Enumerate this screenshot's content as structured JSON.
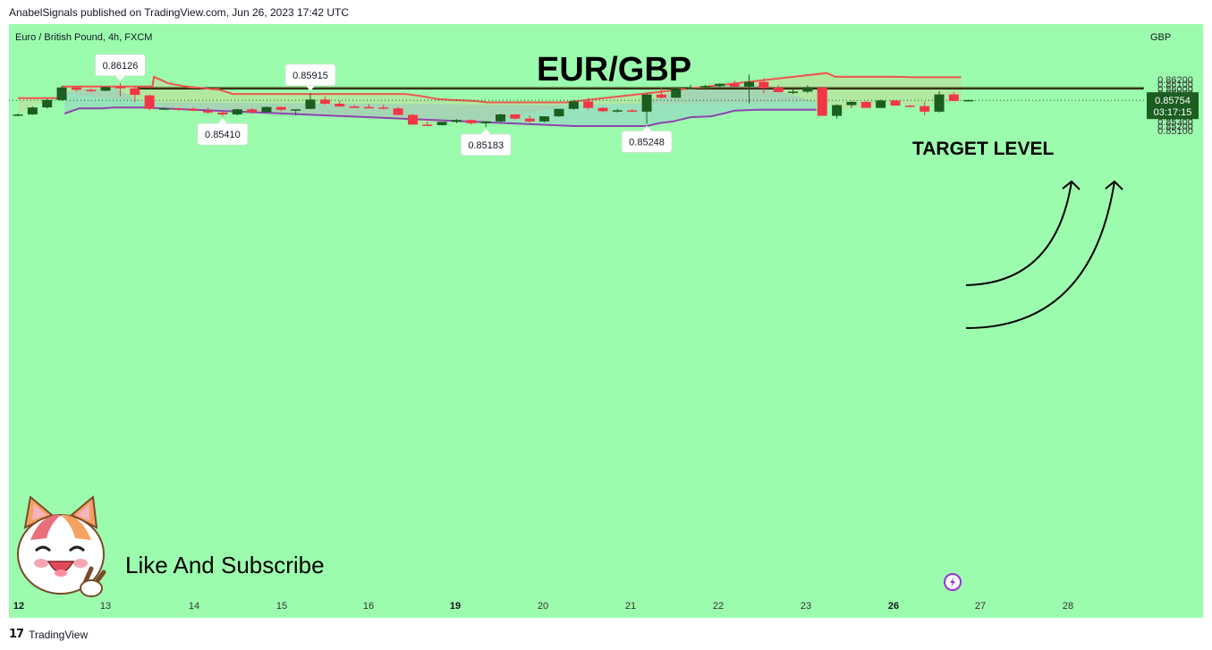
{
  "header": {
    "caption": "AnabelSignals published on TradingView.com, Jun 26, 2023 17:42 UTC"
  },
  "footer": {
    "brand_logo": "17",
    "brand_name": "TradingView"
  },
  "colors": {
    "background": "#9cfcae",
    "bull_candle": "#1b5e20",
    "bear_candle": "#f23645",
    "upper_band": "#ef5350",
    "lower_band": "#8e44ad",
    "target_zone": "#ffe033",
    "last_price_bg": "#1b5e20"
  },
  "labels": {
    "symbol": "Euro / British Pound, 4h, FXCM",
    "currency": "GBP",
    "title": "EUR/GBP",
    "target": "TARGET LEVEL",
    "like": "Like And Subscribe",
    "last_price": "0.85754",
    "countdown": "03:17:15"
  },
  "chart_data": {
    "type": "candlestick",
    "symbol": "Euro / British Pound, 4h, FXCM",
    "currency": "GBP",
    "x_ticks": [
      {
        "label": "12",
        "bold": true
      },
      {
        "label": "13",
        "bold": false
      },
      {
        "label": "14",
        "bold": false
      },
      {
        "label": "15",
        "bold": false
      },
      {
        "label": "16",
        "bold": false
      },
      {
        "label": "19",
        "bold": true
      },
      {
        "label": "20",
        "bold": false
      },
      {
        "label": "21",
        "bold": false
      },
      {
        "label": "22",
        "bold": false
      },
      {
        "label": "23",
        "bold": false
      },
      {
        "label": "26",
        "bold": true
      },
      {
        "label": "27",
        "bold": false
      },
      {
        "label": "28",
        "bold": false
      }
    ],
    "y_ticks": [
      "0.86200",
      "0.86100",
      "0.86000",
      "0.85900",
      "0.85800",
      "0.85700",
      "0.85600",
      "0.85500",
      "0.85400",
      "0.85300",
      "0.85200",
      "0.85100"
    ],
    "ylim": [
      0.8508,
      0.8633
    ],
    "candles": [
      {
        "o": 0.8545,
        "h": 0.8547,
        "l": 0.8541,
        "c": 0.8545
      },
      {
        "o": 0.8545,
        "h": 0.8562,
        "l": 0.8544,
        "c": 0.856
      },
      {
        "o": 0.856,
        "h": 0.8579,
        "l": 0.8558,
        "c": 0.8576
      },
      {
        "o": 0.8576,
        "h": 0.8607,
        "l": 0.8574,
        "c": 0.8603
      },
      {
        "o": 0.8603,
        "h": 0.8605,
        "l": 0.8595,
        "c": 0.8598
      },
      {
        "o": 0.8598,
        "h": 0.86,
        "l": 0.8593,
        "c": 0.8596
      },
      {
        "o": 0.8596,
        "h": 0.8605,
        "l": 0.8595,
        "c": 0.8604
      },
      {
        "o": 0.8604,
        "h": 0.8613,
        "l": 0.8584,
        "c": 0.8601
      },
      {
        "o": 0.8601,
        "h": 0.8605,
        "l": 0.8571,
        "c": 0.8587
      },
      {
        "o": 0.8586,
        "h": 0.8588,
        "l": 0.8554,
        "c": 0.8557
      },
      {
        "o": 0.8557,
        "h": 0.856,
        "l": 0.8555,
        "c": 0.8558
      },
      {
        "o": 0.8558,
        "h": 0.8559,
        "l": 0.8553,
        "c": 0.8557
      },
      {
        "o": 0.8557,
        "h": 0.856,
        "l": 0.8552,
        "c": 0.8553
      },
      {
        "o": 0.8553,
        "h": 0.856,
        "l": 0.8546,
        "c": 0.8549
      },
      {
        "o": 0.8549,
        "h": 0.8551,
        "l": 0.8541,
        "c": 0.8545
      },
      {
        "o": 0.8545,
        "h": 0.8557,
        "l": 0.8543,
        "c": 0.8556
      },
      {
        "o": 0.8556,
        "h": 0.8559,
        "l": 0.8547,
        "c": 0.855
      },
      {
        "o": 0.855,
        "h": 0.8562,
        "l": 0.8549,
        "c": 0.8561
      },
      {
        "o": 0.8561,
        "h": 0.8562,
        "l": 0.8552,
        "c": 0.8555
      },
      {
        "o": 0.8555,
        "h": 0.8556,
        "l": 0.8543,
        "c": 0.8556
      },
      {
        "o": 0.8557,
        "h": 0.8591,
        "l": 0.8556,
        "c": 0.8577
      },
      {
        "o": 0.8577,
        "h": 0.8584,
        "l": 0.8566,
        "c": 0.8568
      },
      {
        "o": 0.8568,
        "h": 0.8574,
        "l": 0.8562,
        "c": 0.8562
      },
      {
        "o": 0.8562,
        "h": 0.8565,
        "l": 0.8559,
        "c": 0.8561
      },
      {
        "o": 0.8561,
        "h": 0.8567,
        "l": 0.8559,
        "c": 0.856
      },
      {
        "o": 0.856,
        "h": 0.8566,
        "l": 0.8556,
        "c": 0.8558
      },
      {
        "o": 0.8558,
        "h": 0.8561,
        "l": 0.8543,
        "c": 0.8544
      },
      {
        "o": 0.8544,
        "h": 0.8546,
        "l": 0.8523,
        "c": 0.8523
      },
      {
        "o": 0.8523,
        "h": 0.853,
        "l": 0.8521,
        "c": 0.8522
      },
      {
        "o": 0.8522,
        "h": 0.8529,
        "l": 0.8521,
        "c": 0.8529
      },
      {
        "o": 0.8529,
        "h": 0.8535,
        "l": 0.8526,
        "c": 0.8533
      },
      {
        "o": 0.8533,
        "h": 0.8534,
        "l": 0.8523,
        "c": 0.8526
      },
      {
        "o": 0.8526,
        "h": 0.8531,
        "l": 0.8518,
        "c": 0.853
      },
      {
        "o": 0.853,
        "h": 0.8547,
        "l": 0.8528,
        "c": 0.8545
      },
      {
        "o": 0.8545,
        "h": 0.8546,
        "l": 0.8534,
        "c": 0.8536
      },
      {
        "o": 0.8536,
        "h": 0.8543,
        "l": 0.8527,
        "c": 0.853
      },
      {
        "o": 0.853,
        "h": 0.8541,
        "l": 0.8528,
        "c": 0.8541
      },
      {
        "o": 0.8541,
        "h": 0.8557,
        "l": 0.854,
        "c": 0.8557
      },
      {
        "o": 0.8557,
        "h": 0.8576,
        "l": 0.8555,
        "c": 0.8573
      },
      {
        "o": 0.8573,
        "h": 0.8581,
        "l": 0.8555,
        "c": 0.8559
      },
      {
        "o": 0.8559,
        "h": 0.8561,
        "l": 0.8549,
        "c": 0.8552
      },
      {
        "o": 0.8552,
        "h": 0.8557,
        "l": 0.8549,
        "c": 0.8554
      },
      {
        "o": 0.8554,
        "h": 0.8557,
        "l": 0.855,
        "c": 0.8551
      },
      {
        "o": 0.8551,
        "h": 0.859,
        "l": 0.8525,
        "c": 0.8588
      },
      {
        "o": 0.8588,
        "h": 0.8603,
        "l": 0.8579,
        "c": 0.8581
      },
      {
        "o": 0.8581,
        "h": 0.8602,
        "l": 0.858,
        "c": 0.86
      },
      {
        "o": 0.86,
        "h": 0.8609,
        "l": 0.8599,
        "c": 0.8602
      },
      {
        "o": 0.8602,
        "h": 0.8609,
        "l": 0.8598,
        "c": 0.8606
      },
      {
        "o": 0.8606,
        "h": 0.8612,
        "l": 0.8604,
        "c": 0.8611
      },
      {
        "o": 0.8611,
        "h": 0.8618,
        "l": 0.8604,
        "c": 0.8605
      },
      {
        "o": 0.8605,
        "h": 0.8631,
        "l": 0.8569,
        "c": 0.8615
      },
      {
        "o": 0.8615,
        "h": 0.8623,
        "l": 0.859,
        "c": 0.8601
      },
      {
        "o": 0.8603,
        "h": 0.8608,
        "l": 0.8593,
        "c": 0.8593
      },
      {
        "o": 0.8593,
        "h": 0.8603,
        "l": 0.8589,
        "c": 0.8594
      },
      {
        "o": 0.8594,
        "h": 0.8608,
        "l": 0.8591,
        "c": 0.8603
      },
      {
        "o": 0.8603,
        "h": 0.8605,
        "l": 0.8542,
        "c": 0.8542
      },
      {
        "o": 0.8542,
        "h": 0.8567,
        "l": 0.8536,
        "c": 0.8565
      },
      {
        "o": 0.8565,
        "h": 0.8574,
        "l": 0.8559,
        "c": 0.8572
      },
      {
        "o": 0.8572,
        "h": 0.8574,
        "l": 0.8559,
        "c": 0.8559
      },
      {
        "o": 0.8559,
        "h": 0.8577,
        "l": 0.8559,
        "c": 0.8575
      },
      {
        "o": 0.8575,
        "h": 0.8576,
        "l": 0.8564,
        "c": 0.8564
      },
      {
        "o": 0.8564,
        "h": 0.8565,
        "l": 0.8561,
        "c": 0.8563
      },
      {
        "o": 0.8563,
        "h": 0.8572,
        "l": 0.8543,
        "c": 0.8551
      },
      {
        "o": 0.8551,
        "h": 0.8595,
        "l": 0.8549,
        "c": 0.8588
      },
      {
        "o": 0.8588,
        "h": 0.8593,
        "l": 0.8573,
        "c": 0.8574
      },
      {
        "o": 0.8575,
        "h": 0.8577,
        "l": 0.8574,
        "c": 0.8576
      }
    ],
    "upper_band": [
      [
        0,
        0.858
      ],
      [
        3,
        0.858
      ],
      [
        3.1,
        0.8605
      ],
      [
        9.2,
        0.8605
      ],
      [
        9.3,
        0.8626
      ],
      [
        10.3,
        0.8612
      ],
      [
        11.5,
        0.8605
      ],
      [
        13.8,
        0.8598
      ],
      [
        14.7,
        0.8589
      ],
      [
        26.5,
        0.8589
      ],
      [
        27.5,
        0.8585
      ],
      [
        28.7,
        0.8578
      ],
      [
        29.8,
        0.8576
      ],
      [
        31.2,
        0.8574
      ],
      [
        32.1,
        0.8571
      ],
      [
        37.5,
        0.8571
      ],
      [
        55.3,
        0.8634
      ],
      [
        55.9,
        0.8626
      ],
      [
        60.2,
        0.8626
      ],
      [
        61.2,
        0.8625
      ],
      [
        64.5,
        0.8625
      ]
    ],
    "lower_band": [
      [
        3.2,
        0.8547
      ],
      [
        4.2,
        0.8558
      ],
      [
        5.7,
        0.8558
      ],
      [
        6.6,
        0.856
      ],
      [
        8.5,
        0.856
      ],
      [
        38.0,
        0.852
      ],
      [
        43.0,
        0.852
      ],
      [
        43.8,
        0.8526
      ],
      [
        44.8,
        0.853
      ],
      [
        46.0,
        0.8539
      ],
      [
        47.4,
        0.8541
      ],
      [
        48.4,
        0.8548
      ],
      [
        49.0,
        0.8553
      ],
      [
        50.5,
        0.8555
      ],
      [
        54.6,
        0.8555
      ]
    ],
    "target_zone": [
      0.85998,
      0.86026
    ],
    "last_price": 0.85754,
    "annotations": [
      {
        "text": "0.86126",
        "anchor_index": 7,
        "price": 0.86126,
        "side": "above"
      },
      {
        "text": "0.85915",
        "anchor_index": 20,
        "price": 0.85915,
        "side": "above"
      },
      {
        "text": "0.85410",
        "anchor_index": 14,
        "price": 0.8541,
        "side": "below"
      },
      {
        "text": "0.85183",
        "anchor_index": 32,
        "price": 0.85183,
        "side": "below"
      },
      {
        "text": "0.85248",
        "anchor_index": 43,
        "price": 0.85248,
        "side": "below"
      }
    ]
  }
}
